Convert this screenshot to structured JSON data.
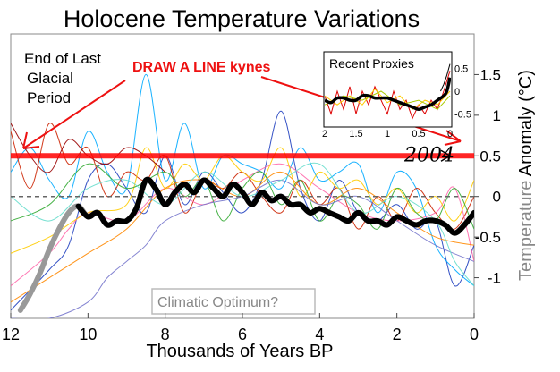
{
  "chart_data": [
    {
      "type": "line",
      "title": "Holocene Temperature Variations",
      "xlabel": "Thousands of Years BP",
      "ylabel": "Temperature Anomaly (°C)",
      "xlim": [
        12,
        0
      ],
      "ylim": [
        -1.5,
        2.0
      ],
      "x_ticks": [
        12,
        10,
        8,
        6,
        4,
        2,
        0
      ],
      "x_tick_labels": [
        "12",
        "10",
        "8",
        "6",
        "4",
        "2",
        "0"
      ],
      "y_ticks": [
        1.5,
        1,
        0.5,
        0,
        -0.5,
        -1
      ],
      "y_tick_labels": [
        "1.5",
        "1",
        "0.5",
        "0",
        "-0.5",
        "-1"
      ],
      "grid": false,
      "zero_line": {
        "value": 0,
        "style": "dashed",
        "color": "#666666"
      },
      "reference_line": {
        "value": 0.5,
        "label": "2004",
        "color": "#ff0000"
      },
      "text_annotations": [
        "End of Last Glacial Period",
        "DRAW A LINE kynes",
        "Climatic Optimum?"
      ],
      "average_series": {
        "color": "#000000",
        "x": [
          11.75,
          11.5,
          11.25,
          11,
          10.75,
          10.5,
          10.25,
          10,
          9.75,
          9.5,
          9.25,
          9,
          8.75,
          8.5,
          8.25,
          8,
          7.75,
          7.5,
          7.25,
          7,
          6.75,
          6.5,
          6.25,
          6,
          5.75,
          5.5,
          5.25,
          5,
          4.75,
          4.5,
          4.25,
          4,
          3.75,
          3.5,
          3.25,
          3,
          2.75,
          2.5,
          2.25,
          2,
          1.75,
          1.5,
          1.25,
          1,
          0.75,
          0.5,
          0.25,
          0
        ],
        "y": [
          -1.4,
          -1.2,
          -0.95,
          -0.65,
          -0.4,
          -0.2,
          -0.12,
          -0.25,
          -0.2,
          -0.35,
          -0.3,
          -0.3,
          -0.15,
          0.2,
          0.1,
          -0.1,
          0.05,
          0.15,
          0.05,
          0.2,
          0.1,
          0.0,
          0.15,
          0.05,
          -0.1,
          0.05,
          -0.05,
          0.0,
          -0.1,
          -0.1,
          -0.2,
          -0.15,
          -0.2,
          -0.25,
          -0.3,
          -0.2,
          -0.3,
          -0.3,
          -0.35,
          -0.25,
          -0.3,
          -0.35,
          -0.3,
          -0.3,
          -0.35,
          -0.45,
          -0.35,
          -0.2
        ]
      },
      "proxy_series": [
        {
          "color": "#1f3fbf",
          "x": [
            12,
            11,
            10.5,
            10,
            9.5,
            9,
            8.5,
            8,
            7.5,
            7,
            6.5,
            6,
            5.5,
            5,
            4.5,
            4,
            3.5,
            3,
            2.5,
            2,
            1.5,
            1,
            0.5,
            0
          ],
          "y": [
            -1.4,
            -0.9,
            -0.6,
            0.2,
            0.4,
            0.1,
            -0.2,
            0.5,
            -0.1,
            0.3,
            0.05,
            -0.2,
            0.2,
            1.05,
            0.1,
            -0.3,
            0.2,
            -0.2,
            -0.3,
            -0.1,
            -0.4,
            -0.3,
            -1.1,
            -0.6
          ]
        },
        {
          "color": "#00aaff",
          "x": [
            12,
            11.5,
            11,
            10.5,
            10,
            9.5,
            9,
            8.5,
            8,
            7.5,
            7,
            6.5,
            6,
            5.5,
            5,
            4.5,
            4,
            3.5,
            3,
            2.5,
            2,
            1.5,
            1,
            0.5,
            0
          ],
          "y": [
            0.3,
            0.6,
            0.2,
            0.0,
            0.8,
            0.3,
            0.1,
            1.5,
            0.2,
            0.9,
            0.1,
            0.5,
            0.4,
            0.3,
            0.1,
            0.6,
            0.2,
            0.3,
            0.4,
            -0.2,
            0.3,
            0.1,
            -0.6,
            -0.9,
            -1.1
          ]
        },
        {
          "color": "#cc2200",
          "x": [
            12,
            11.5,
            11,
            10.5,
            10,
            9.5,
            9,
            8.5,
            8,
            7.5,
            7,
            6.5,
            6,
            5.5,
            5,
            4.5,
            4,
            3.5,
            3,
            2.5,
            2,
            1.5,
            1,
            0.5,
            0
          ],
          "y": [
            0.8,
            0.1,
            0.9,
            0.4,
            0.6,
            0.0,
            0.3,
            0.2,
            0.5,
            -0.2,
            0.2,
            0.1,
            0.3,
            0.0,
            -0.2,
            0.2,
            -0.1,
            0.1,
            -0.4,
            0.0,
            -0.3,
            0.1,
            -0.2,
            -0.4,
            0.0
          ]
        },
        {
          "color": "#ff66aa",
          "x": [
            12,
            11,
            10.5,
            10,
            9,
            8,
            7,
            6,
            5,
            4,
            3,
            2,
            1,
            0.5,
            0
          ],
          "y": [
            -1.1,
            -0.7,
            -0.4,
            -0.2,
            -0.3,
            0.1,
            -0.1,
            0.2,
            0.4,
            0.1,
            -0.2,
            -0.3,
            -0.2,
            0.1,
            -0.8
          ]
        },
        {
          "color": "#ffcc00",
          "x": [
            12,
            11,
            10,
            9,
            8.5,
            8,
            7.5,
            7,
            6.5,
            6,
            5.5,
            5,
            4.5,
            4,
            3.5,
            3,
            2.5,
            2,
            1.5,
            1,
            0.5,
            0
          ],
          "y": [
            -0.7,
            -0.5,
            -0.2,
            -0.1,
            0.6,
            0.1,
            0.4,
            0.2,
            0.5,
            0.3,
            0.2,
            0.6,
            0.0,
            0.3,
            0.1,
            0.2,
            -0.1,
            0.1,
            -0.2,
            0.0,
            -0.3,
            0.2
          ]
        },
        {
          "color": "#33aa33",
          "x": [
            12,
            11,
            10,
            9,
            8,
            7.5,
            7,
            6.5,
            6,
            5.5,
            5,
            4.5,
            4,
            3.5,
            3,
            2.5,
            2,
            1.5,
            1,
            0.5,
            0
          ],
          "y": [
            -0.3,
            -0.1,
            0.4,
            0.1,
            0.3,
            0.0,
            0.2,
            -0.3,
            0.1,
            0.3,
            -0.1,
            0.2,
            -0.3,
            0.0,
            -0.1,
            -0.4,
            0.1,
            -0.2,
            -0.3,
            0.1,
            -0.4
          ]
        },
        {
          "color": "#ff8800",
          "x": [
            12,
            11,
            10,
            9,
            8,
            7,
            6,
            5,
            4,
            3,
            2,
            1,
            0
          ],
          "y": [
            -1.3,
            -1.0,
            -0.7,
            -0.4,
            0.1,
            0.2,
            0.0,
            0.3,
            -0.1,
            0.1,
            -0.2,
            -0.5,
            -0.6
          ]
        },
        {
          "color": "#7777cc",
          "x": [
            12,
            11,
            10,
            9.5,
            9,
            8.5,
            8,
            7,
            6,
            5,
            4,
            3,
            2,
            1,
            0
          ],
          "y": [
            -1.5,
            -1.5,
            -1.3,
            -1.0,
            -0.8,
            -0.6,
            -0.3,
            -0.1,
            0.0,
            0.2,
            -0.1,
            0.0,
            -0.3,
            -0.6,
            -0.8
          ]
        },
        {
          "color": "#66ddcc",
          "x": [
            12,
            11,
            10,
            9,
            8,
            7,
            6,
            5,
            4,
            3,
            2,
            1,
            0.5,
            0
          ],
          "y": [
            0.0,
            -0.3,
            0.1,
            0.2,
            -0.1,
            0.3,
            0.0,
            0.2,
            0.4,
            -0.2,
            0.0,
            -0.3,
            -0.8,
            -1.1
          ]
        },
        {
          "color": "#990000",
          "x": [
            12,
            11.5,
            11,
            10.5,
            10,
            9.5,
            9,
            8.5,
            8
          ],
          "y": [
            0.9,
            0.5,
            0.3,
            0.7,
            0.5,
            0.4,
            0.6,
            0.5,
            0.3
          ]
        }
      ]
    },
    {
      "type": "line",
      "title": "Recent Proxies",
      "xlim": [
        2,
        0
      ],
      "ylim": [
        -0.75,
        0.75
      ],
      "x_ticks": [
        2,
        1.5,
        1,
        0.5,
        0
      ],
      "x_tick_labels": [
        "2",
        "1.5",
        "1",
        "0.5",
        "0"
      ],
      "y_ticks": [
        0.5,
        0,
        -0.5
      ],
      "y_tick_labels": [
        "0.5",
        "0",
        "-0.5"
      ],
      "average_series": {
        "color": "#000000",
        "x": [
          2,
          1.9,
          1.8,
          1.7,
          1.6,
          1.5,
          1.4,
          1.3,
          1.2,
          1.1,
          1.0,
          0.9,
          0.8,
          0.7,
          0.6,
          0.5,
          0.4,
          0.3,
          0.2,
          0.1,
          0.05,
          0
        ],
        "y": [
          -0.2,
          -0.25,
          -0.15,
          -0.15,
          -0.2,
          -0.2,
          -0.1,
          -0.1,
          -0.15,
          -0.15,
          -0.15,
          -0.2,
          -0.25,
          -0.3,
          -0.35,
          -0.4,
          -0.35,
          -0.3,
          -0.2,
          -0.1,
          0.0,
          0.3
        ]
      },
      "proxy_series": [
        {
          "color": "#dd0000",
          "x": [
            2,
            1.9,
            1.8,
            1.7,
            1.6,
            1.5,
            1.4,
            1.3,
            1.2,
            1.1,
            1.0,
            0.9,
            0.8,
            0.7,
            0.6,
            0.5,
            0.4,
            0.3,
            0.2,
            0.1,
            0
          ],
          "y": [
            -0.1,
            -0.5,
            0.0,
            -0.4,
            0.1,
            -0.5,
            0.0,
            -0.3,
            0.1,
            -0.2,
            -0.5,
            0.0,
            -0.4,
            -0.2,
            -0.6,
            -0.3,
            -0.5,
            -0.2,
            -0.4,
            0.0,
            0.45
          ]
        },
        {
          "color": "#ffcc00",
          "x": [
            2,
            1.8,
            1.6,
            1.4,
            1.2,
            1.0,
            0.8,
            0.6,
            0.4,
            0.2,
            0
          ],
          "y": [
            -0.1,
            -0.3,
            -0.1,
            -0.3,
            0.05,
            -0.25,
            -0.1,
            -0.4,
            -0.2,
            -0.3,
            0.0
          ]
        },
        {
          "color": "#aacc00",
          "x": [
            2,
            1.7,
            1.4,
            1.1,
            0.8,
            0.5,
            0.2,
            0
          ],
          "y": [
            -0.3,
            -0.1,
            -0.2,
            0.0,
            -0.3,
            -0.2,
            -0.4,
            -0.1
          ]
        },
        {
          "color": "#000000",
          "x": [
            0.15,
            0.1,
            0.05,
            0
          ],
          "y": [
            0.0,
            0.15,
            0.35,
            0.6
          ]
        }
      ]
    }
  ]
}
